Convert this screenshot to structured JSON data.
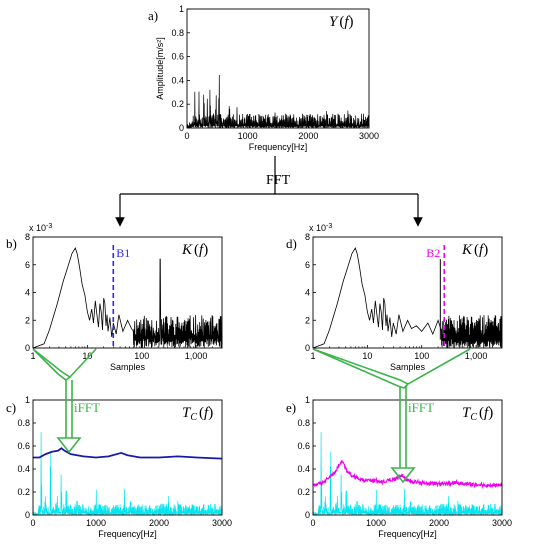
{
  "panel_labels": [
    "a)",
    "b)",
    "c)",
    "d)",
    "e)"
  ],
  "annotations": {
    "fft": "FFT",
    "ifft_left": "iFFT",
    "ifft_right": "iFFT",
    "marker_b1": "B1",
    "marker_b2": "B2"
  },
  "colors": {
    "signal": "#000000",
    "envelope_blue": "#1a1aaa",
    "cyan": "#00e5ee",
    "magenta": "#ee00ee",
    "marker_blue": "#2a2af0",
    "arrow_green": "#3cb44b"
  },
  "chart_data": [
    {
      "id": "a",
      "type": "line",
      "title": "Y(f)",
      "xlabel": "Frequency[Hz]",
      "ylabel": "Amplitude[m/s²]",
      "xlim": [
        0,
        3000
      ],
      "ylim": [
        0,
        1
      ],
      "xticks": [
        "0",
        "1000",
        "2000",
        "3000"
      ],
      "yticks": [
        "0",
        "0.2",
        "0.4",
        "0.6",
        "0.8",
        "1"
      ],
      "series": [
        {
          "color": "#000000",
          "peaks": [
            [
              130,
              0.62
            ],
            [
              200,
              0.42
            ],
            [
              280,
              0.58
            ],
            [
              330,
              0.39
            ],
            [
              380,
              0.76
            ],
            [
              430,
              0.5
            ],
            [
              480,
              0.46
            ],
            [
              530,
              0.55
            ],
            [
              600,
              0.38
            ],
            [
              700,
              0.32
            ],
            [
              820,
              0.26
            ],
            [
              1000,
              0.2
            ],
            [
              1450,
              0.23
            ],
            [
              1550,
              0.2
            ],
            [
              2150,
              0.22
            ],
            [
              2300,
              0.23
            ],
            [
              2650,
              0.18
            ]
          ],
          "baseline": 0.12
        }
      ]
    },
    {
      "id": "b",
      "type": "line",
      "title": "K(f)",
      "xlabel": "Samples",
      "xscale": "log",
      "xlim": [
        1,
        3000
      ],
      "ylim": [
        0,
        8
      ],
      "y_multiplier": "x 10",
      "y_exponent": "-3",
      "xticks": [
        "1",
        "10",
        "100",
        "1,000"
      ],
      "yticks": [
        "0",
        "2",
        "4",
        "6",
        "8"
      ],
      "marker": {
        "label": "B1",
        "x": 30
      },
      "series": [
        {
          "color": "#000000",
          "points": [
            [
              1,
              0
            ],
            [
              1.6,
              0.3
            ],
            [
              2,
              1.3
            ],
            [
              2.8,
              3.2
            ],
            [
              3.6,
              4.8
            ],
            [
              4.5,
              6.0
            ],
            [
              5.2,
              6.8
            ],
            [
              6,
              7.2
            ],
            [
              6.5,
              6.8
            ],
            [
              7.2,
              5.8
            ],
            [
              8,
              4.6
            ],
            [
              9,
              3.8
            ],
            [
              10,
              2.6
            ],
            [
              11,
              2.0
            ],
            [
              12,
              2.8
            ],
            [
              13,
              1.8
            ],
            [
              14,
              3.4
            ],
            [
              15,
              2.4
            ],
            [
              16,
              1.5
            ],
            [
              17,
              3.2
            ],
            [
              18,
              2.6
            ],
            [
              19,
              1.3
            ],
            [
              20,
              3.6
            ],
            [
              21,
              3.2
            ],
            [
              22,
              1.6
            ],
            [
              23,
              2.4
            ],
            [
              24,
              1.2
            ],
            [
              26,
              2.2
            ],
            [
              28,
              0.8
            ],
            [
              30,
              1.8
            ],
            [
              34,
              1.0
            ],
            [
              38,
              2.4
            ],
            [
              45,
              1.2
            ],
            [
              55,
              2.0
            ],
            [
              65,
              1.4
            ]
          ],
          "noise_from": 70,
          "noise_base": 1.4,
          "spike": [
            220,
            6.4
          ]
        }
      ]
    },
    {
      "id": "c",
      "type": "line",
      "title": "T_C(f)",
      "xlabel": "Frequency[Hz]",
      "xlim": [
        0,
        3000
      ],
      "ylim": [
        0,
        1
      ],
      "xticks": [
        "0",
        "1000",
        "2000",
        "3000"
      ],
      "yticks": [
        "0",
        "0.2",
        "0.4",
        "0.6",
        "0.8",
        "1"
      ],
      "series": [
        {
          "name": "",
          "color": "#00e5ee",
          "peaks": [
            [
              130,
              0.9
            ],
            [
              200,
              0.58
            ],
            [
              280,
              0.72
            ],
            [
              380,
              0.5
            ],
            [
              450,
              0.62
            ],
            [
              530,
              0.46
            ],
            [
              700,
              0.4
            ],
            [
              1000,
              0.32
            ],
            [
              1450,
              0.36
            ],
            [
              1550,
              0.28
            ],
            [
              2150,
              0.31
            ],
            [
              2300,
              0.28
            ]
          ],
          "baseline": 0.1
        },
        {
          "name": "",
          "color": "#1a1aaa",
          "points": [
            [
              0,
              0.5
            ],
            [
              100,
              0.5
            ],
            [
              200,
              0.53
            ],
            [
              300,
              0.55
            ],
            [
              400,
              0.56
            ],
            [
              450,
              0.58
            ],
            [
              500,
              0.56
            ],
            [
              600,
              0.53
            ],
            [
              800,
              0.51
            ],
            [
              1000,
              0.5
            ],
            [
              1200,
              0.51
            ],
            [
              1400,
              0.54
            ],
            [
              1500,
              0.52
            ],
            [
              1700,
              0.5
            ],
            [
              2000,
              0.5
            ],
            [
              2300,
              0.51
            ],
            [
              2600,
              0.5
            ],
            [
              3000,
              0.49
            ]
          ]
        }
      ]
    },
    {
      "id": "d",
      "type": "line",
      "title": "K(f)",
      "xlabel": "Samples",
      "xscale": "log",
      "xlim": [
        1,
        3000
      ],
      "ylim": [
        0,
        8
      ],
      "y_multiplier": "x 10",
      "y_exponent": "-3",
      "xticks": [
        "1",
        "10",
        "100",
        "1,000"
      ],
      "yticks": [
        "0",
        "2",
        "4",
        "6",
        "8"
      ],
      "marker": {
        "label": "B2",
        "x": 260
      },
      "series": [
        {
          "color": "#000000",
          "points": [
            [
              1,
              0
            ],
            [
              1.6,
              0.3
            ],
            [
              2,
              1.3
            ],
            [
              2.8,
              3.2
            ],
            [
              3.6,
              4.8
            ],
            [
              4.5,
              6.0
            ],
            [
              5.2,
              6.8
            ],
            [
              6,
              7.2
            ],
            [
              6.5,
              6.8
            ],
            [
              7.2,
              5.8
            ],
            [
              8,
              4.6
            ],
            [
              9,
              3.8
            ],
            [
              10,
              2.6
            ],
            [
              11,
              2.0
            ],
            [
              12,
              2.8
            ],
            [
              13,
              1.8
            ],
            [
              14,
              3.4
            ],
            [
              15,
              2.4
            ],
            [
              16,
              1.5
            ],
            [
              17,
              3.2
            ],
            [
              18,
              2.6
            ],
            [
              19,
              1.3
            ],
            [
              20,
              3.6
            ],
            [
              21,
              3.2
            ],
            [
              22,
              1.6
            ],
            [
              23,
              2.4
            ],
            [
              24,
              1.2
            ],
            [
              26,
              2.2
            ],
            [
              28,
              0.8
            ],
            [
              30,
              1.8
            ],
            [
              34,
              1.0
            ],
            [
              38,
              2.4
            ],
            [
              45,
              1.2
            ],
            [
              55,
              2.0
            ],
            [
              65,
              1.4
            ],
            [
              80,
              1.6
            ],
            [
              100,
              1.2
            ],
            [
              130,
              1.8
            ],
            [
              160,
              1.0
            ],
            [
              200,
              2.0
            ]
          ],
          "noise_from": 230,
          "noise_base": 1.4,
          "spike": [
            220,
            6.4
          ]
        }
      ]
    },
    {
      "id": "e",
      "type": "line",
      "title": "T_C(f)",
      "xlabel": "Frequency[Hz]",
      "xlim": [
        0,
        3000
      ],
      "ylim": [
        0,
        1
      ],
      "xticks": [
        "0",
        "1000",
        "2000",
        "3000"
      ],
      "yticks": [
        "0",
        "0.2",
        "0.4",
        "0.6",
        "0.8",
        "1"
      ],
      "series": [
        {
          "name": "",
          "color": "#00e5ee",
          "peaks": [
            [
              130,
              0.9
            ],
            [
              200,
              0.58
            ],
            [
              280,
              0.72
            ],
            [
              380,
              0.5
            ],
            [
              450,
              0.62
            ],
            [
              530,
              0.46
            ],
            [
              700,
              0.4
            ],
            [
              1000,
              0.32
            ],
            [
              1450,
              0.36
            ],
            [
              1550,
              0.28
            ],
            [
              2150,
              0.31
            ],
            [
              2300,
              0.28
            ]
          ],
          "baseline": 0.1
        },
        {
          "name": "",
          "color": "#ee00ee",
          "points": [
            [
              0,
              0.26
            ],
            [
              150,
              0.28
            ],
            [
              250,
              0.33
            ],
            [
              350,
              0.37
            ],
            [
              420,
              0.44
            ],
            [
              470,
              0.47
            ],
            [
              520,
              0.4
            ],
            [
              600,
              0.35
            ],
            [
              750,
              0.31
            ],
            [
              900,
              0.3
            ],
            [
              1100,
              0.29
            ],
            [
              1300,
              0.31
            ],
            [
              1400,
              0.35
            ],
            [
              1500,
              0.3
            ],
            [
              1700,
              0.28
            ],
            [
              2000,
              0.27
            ],
            [
              2300,
              0.28
            ],
            [
              2600,
              0.26
            ],
            [
              3000,
              0.26
            ]
          ],
          "noise": 0.02
        }
      ]
    }
  ]
}
